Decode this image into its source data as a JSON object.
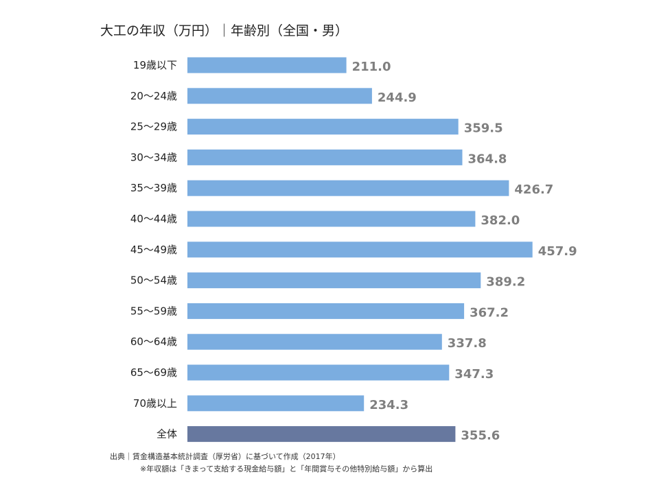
{
  "chart_data": {
    "type": "bar",
    "orientation": "horizontal",
    "title": "大工の年収（万円）｜年齢別（全国・男）",
    "categories": [
      "19歳以下",
      "20～24歳",
      "25～29歳",
      "30～34歳",
      "35～39歳",
      "40～44歳",
      "45～49歳",
      "50～54歳",
      "55～59歳",
      "60～64歳",
      "65～69歳",
      "70歳以上",
      "全体"
    ],
    "values": [
      211.0,
      244.9,
      359.5,
      364.8,
      426.7,
      382.0,
      457.9,
      389.2,
      367.2,
      337.8,
      347.3,
      234.3,
      355.6
    ],
    "value_labels": [
      "211.0",
      "244.9",
      "359.5",
      "364.8",
      "426.7",
      "382.0",
      "457.9",
      "389.2",
      "367.2",
      "337.8",
      "347.3",
      "234.3",
      "355.6"
    ],
    "xlim": [
      0,
      460
    ],
    "grid": false,
    "legend": "none",
    "colors": {
      "bar": "#7bade0",
      "total_bar": "#67789f",
      "value_label": "#7f7f7f"
    }
  },
  "footer": {
    "source": "出典｜賃金構造基本統計調査（厚労省）に基づいて作成（2017年）",
    "note": "※年収額は「きまって支給する現金給与額」と「年間賞与その他特別給与額」から算出"
  }
}
